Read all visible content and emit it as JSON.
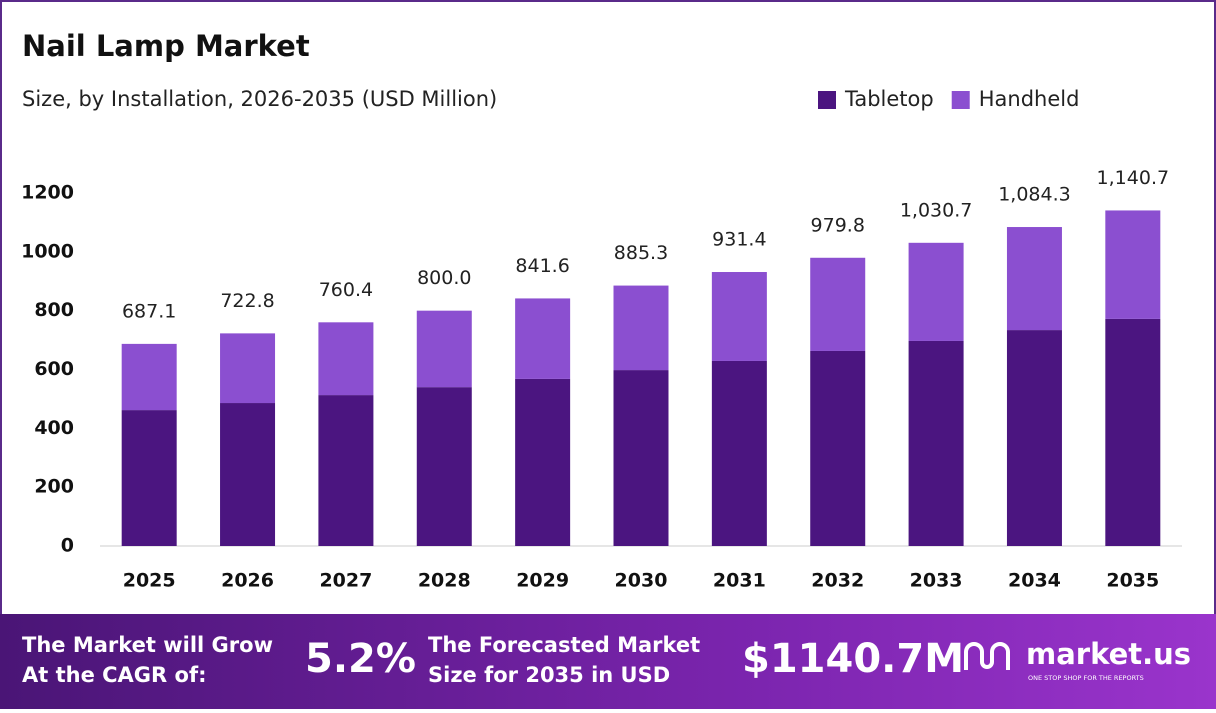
{
  "chart_data": {
    "type": "stacked-bar",
    "title": "Nail Lamp Market",
    "subtitle": "Size, by Installation, 2026-2035 (USD Million)",
    "categories": [
      "2025",
      "2026",
      "2027",
      "2028",
      "2029",
      "2030",
      "2031",
      "2032",
      "2033",
      "2034",
      "2035"
    ],
    "series": [
      {
        "name": "Tabletop",
        "color": "#4b1580",
        "values": [
          462,
          486,
          513,
          540,
          568,
          598,
          629,
          663,
          697,
          734,
          772
        ]
      },
      {
        "name": "Handheld",
        "color": "#8b4fd0",
        "values": [
          225.1,
          236.8,
          247.4,
          260,
          273.6,
          287.3,
          302.4,
          316.8,
          333.7,
          350.3,
          368.7
        ]
      }
    ],
    "totals": {
      "values": [
        687.1,
        722.8,
        760.4,
        800,
        841.6,
        885.3,
        931.4,
        979.8,
        1030.7,
        1084.3,
        1140.7
      ],
      "value_labels": [
        "687.1",
        "722.8",
        "760.4",
        "800.0",
        "841.6",
        "885.3",
        "931.4",
        "979.8",
        "1,030.7",
        "1,084.3",
        "1,140.7"
      ]
    },
    "ylim": [
      0,
      1200
    ],
    "yticks": [
      0,
      200,
      400,
      600,
      800,
      1000,
      1200
    ],
    "grid": false,
    "legend": "top-right"
  },
  "footer": {
    "cagr_text": [
      "The Market will Grow",
      "At the CAGR of:"
    ],
    "cagr": "5.2%",
    "forecast_text": [
      "The Forecasted Market",
      "Size for 2035 in USD"
    ],
    "forecast": "$1140.7M",
    "brand": "market.us",
    "tagline": "ONE STOP SHOP FOR THE REPORTS"
  }
}
